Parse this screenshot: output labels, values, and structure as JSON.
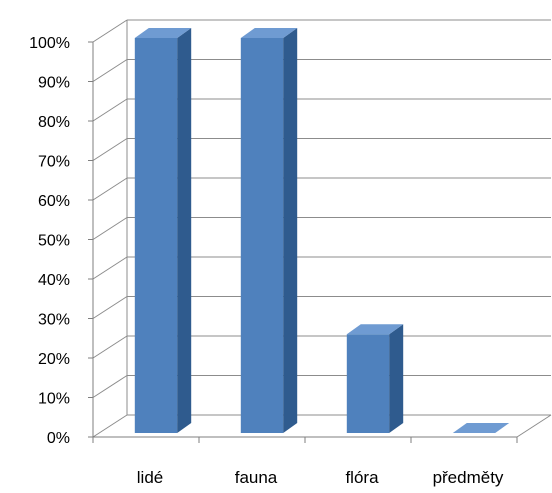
{
  "chart_data": {
    "type": "bar",
    "style": "3d-column",
    "categories": [
      "lidé",
      "fauna",
      "flóra",
      "předměty"
    ],
    "values": [
      100,
      100,
      25,
      0
    ],
    "y_ticks": [
      "0%",
      "10%",
      "20%",
      "30%",
      "40%",
      "50%",
      "60%",
      "70%",
      "80%",
      "90%",
      "100%"
    ],
    "ylim": [
      0,
      100
    ],
    "y_unit": "%",
    "title": "",
    "xlabel": "",
    "ylabel": "",
    "grid": true,
    "legend": "none",
    "colors": {
      "bar_front": "#4f81bd",
      "bar_side": "#2f5b8e",
      "bar_top": "#6f9bd2",
      "grid": "#8c8c8c",
      "axis": "#7f7f7f"
    }
  }
}
